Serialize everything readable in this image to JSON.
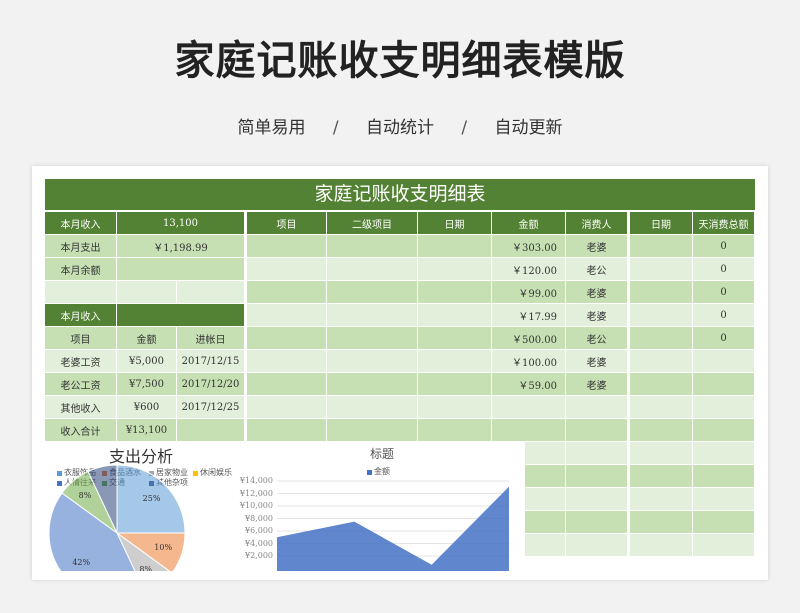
{
  "page": {
    "title": "家庭记账收支明细表模版",
    "tags": [
      "简单易用",
      "自动统计",
      "自动更新"
    ],
    "separator": "/"
  },
  "sheet": {
    "banner": "家庭记账收支明细表",
    "summary": [
      {
        "label": "本月收入",
        "value": "13,100"
      },
      {
        "label": "本月支出",
        "value": "￥1,198.99"
      },
      {
        "label": "本月余额",
        "value": ""
      }
    ],
    "income_section_title": "本月收入",
    "income_headers": [
      "项目",
      "金额",
      "进帐日"
    ],
    "income_rows": [
      {
        "item": "老婆工资",
        "amount": "¥5,000",
        "date": "2017/12/15"
      },
      {
        "item": "老公工资",
        "amount": "¥7,500",
        "date": "2017/12/20"
      },
      {
        "item": "其他收入",
        "amount": "¥600",
        "date": "2017/12/25"
      },
      {
        "item": "收入合计",
        "amount": "¥13,100",
        "date": ""
      }
    ],
    "expense_headers": [
      "项目",
      "二级项目",
      "日期",
      "金额",
      "消费人"
    ],
    "expense_rows": [
      {
        "amount": "￥303.00",
        "person": "老婆"
      },
      {
        "amount": "￥120.00",
        "person": "老公"
      },
      {
        "amount": "￥99.00",
        "person": "老婆"
      },
      {
        "amount": "￥17.99",
        "person": "老婆"
      },
      {
        "amount": "￥500.00",
        "person": "老公"
      },
      {
        "amount": "￥100.00",
        "person": "老婆"
      },
      {
        "amount": "￥59.00",
        "person": "老婆"
      }
    ],
    "daily_headers": [
      "日期",
      "天消费总额"
    ],
    "daily_values": [
      "0",
      "0",
      "0",
      "0",
      "0"
    ]
  },
  "chart_data": [
    {
      "type": "pie",
      "title": "支出分析",
      "labels": [
        "衣服饰品",
        "食品酒水",
        "居家物业",
        "休闲娱乐",
        "人情往来",
        "交通",
        "其他杂项"
      ],
      "values": [
        25,
        10,
        8,
        0,
        42,
        8,
        7
      ],
      "visible_value_labels": [
        "25%",
        "10%",
        "8%",
        "42%"
      ],
      "colors": [
        "#5b9bd5",
        "#ed7d31",
        "#a5a5a5",
        "#ffc000",
        "#4472c4",
        "#70ad47",
        "#264478"
      ]
    },
    {
      "type": "area",
      "title": "标题",
      "series": [
        {
          "name": "金额",
          "values": [
            5000,
            7500,
            600,
            13100
          ]
        }
      ],
      "y_ticks": [
        "¥14,000",
        "¥12,000",
        "¥10,000",
        "¥8,000",
        "¥6,000",
        "¥4,000",
        "¥2,000"
      ],
      "ylim": [
        0,
        14000
      ],
      "color": "#4472c4"
    }
  ]
}
